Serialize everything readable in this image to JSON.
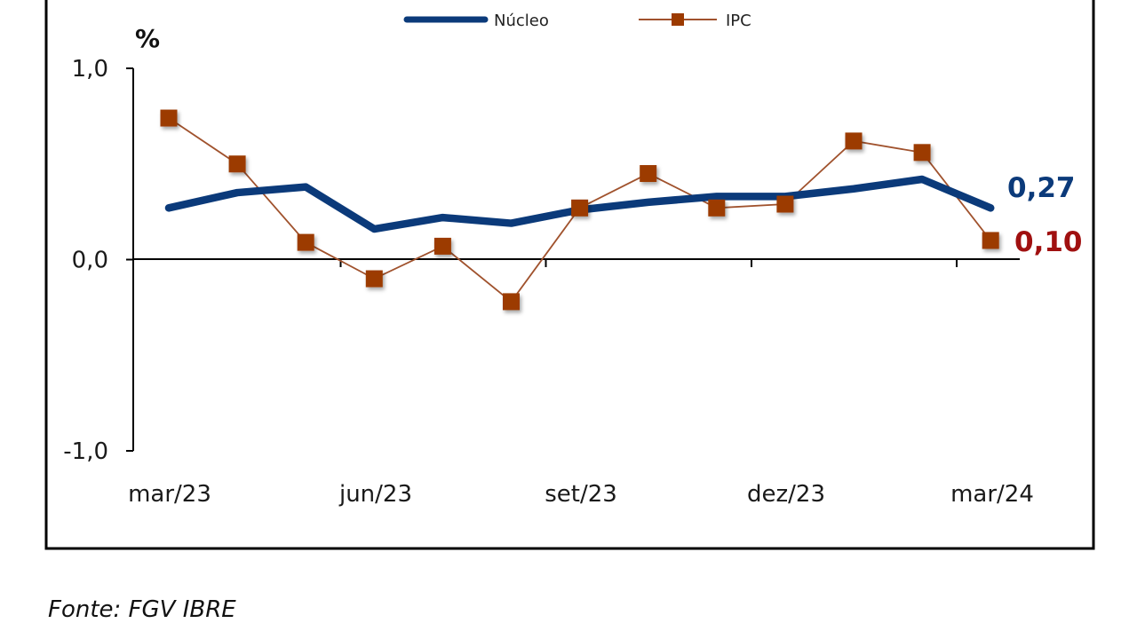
{
  "chart_data": {
    "type": "line",
    "unit": "%",
    "x": [
      "mar/23",
      "abr/23",
      "mai/23",
      "jun/23",
      "jul/23",
      "ago/23",
      "set/23",
      "out/23",
      "nov/23",
      "dez/23",
      "jan/24",
      "fev/24",
      "mar/24"
    ],
    "x_tick_labels": [
      "mar/23",
      "jun/23",
      "set/23",
      "dez/23",
      "mar/24"
    ],
    "series": [
      {
        "name": "Núcleo",
        "color": "#0b3a7a",
        "marker": "none",
        "values": [
          0.27,
          0.35,
          0.38,
          0.16,
          0.22,
          0.19,
          0.26,
          0.3,
          0.33,
          0.33,
          0.37,
          0.42,
          0.27
        ],
        "end_label": "0,27"
      },
      {
        "name": "IPC",
        "color": "#a0522d",
        "marker": "square",
        "marker_color": "#9c3a00",
        "values": [
          0.74,
          0.5,
          0.09,
          -0.1,
          0.07,
          -0.22,
          0.27,
          0.45,
          0.27,
          0.29,
          0.62,
          0.56,
          0.1
        ],
        "end_label": "0,10",
        "end_label_color": "#a01010"
      }
    ],
    "ylim": [
      -1.0,
      1.0
    ],
    "y_ticks": [
      {
        "value": 1.0,
        "label": "1,0"
      },
      {
        "value": 0.0,
        "label": "0,0"
      },
      {
        "value": -1.0,
        "label": "-1,0"
      }
    ],
    "grid": false,
    "legend_position": "top-center",
    "source": "Fonte: FGV IBRE"
  }
}
